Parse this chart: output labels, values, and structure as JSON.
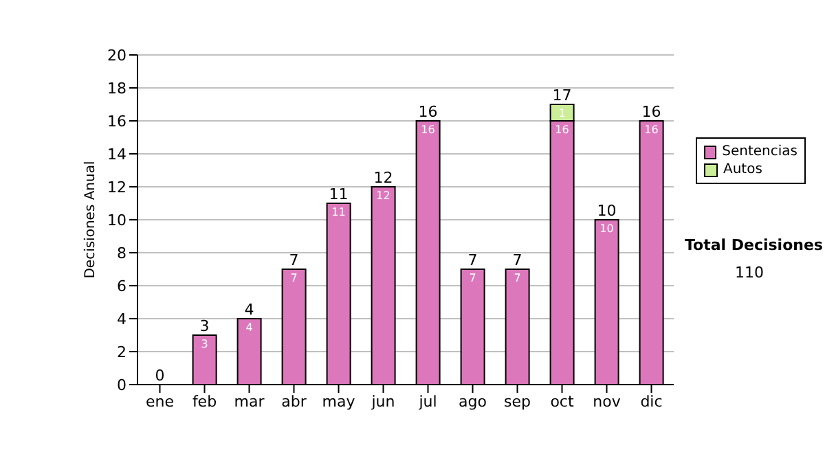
{
  "chart_data": {
    "type": "bar",
    "stacked": true,
    "ylabel": "Decisiones Anual",
    "categories": [
      "ene",
      "feb",
      "mar",
      "abr",
      "may",
      "jun",
      "jul",
      "ago",
      "sep",
      "oct",
      "nov",
      "dic"
    ],
    "series": [
      {
        "name": "Sentencias",
        "color": "#dd77bb",
        "values": [
          0,
          3,
          4,
          7,
          11,
          12,
          16,
          7,
          7,
          16,
          10,
          16
        ],
        "value_labels": [
          null,
          "3",
          "4",
          "7",
          "11",
          "12",
          "16",
          "7",
          "7",
          "16",
          "10",
          "16"
        ]
      },
      {
        "name": "Autos",
        "color": "#ccee99",
        "values": [
          0,
          0,
          0,
          0,
          0,
          0,
          0,
          0,
          0,
          1,
          0,
          0
        ],
        "value_labels": [
          null,
          null,
          null,
          null,
          null,
          null,
          null,
          null,
          null,
          "1",
          null,
          null
        ]
      }
    ],
    "totals": [
      "0",
      "3",
      "4",
      "7",
      "11",
      "12",
      "16",
      "7",
      "7",
      "17",
      "10",
      "16"
    ],
    "ylim": [
      0,
      20
    ],
    "yticks": [
      0,
      2,
      4,
      6,
      8,
      10,
      12,
      14,
      16,
      18,
      20
    ],
    "grid": "y",
    "legend": "right",
    "annotations": [
      "Total Decisiones",
      "110"
    ]
  }
}
